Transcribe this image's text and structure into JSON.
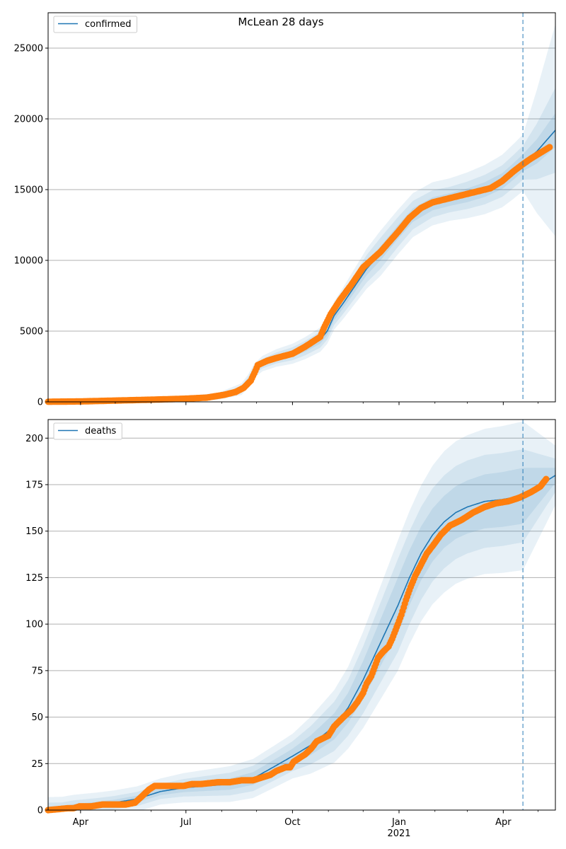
{
  "title": "McLean 28 days",
  "colors": {
    "model_line": "#1f77b4",
    "observed": "#ff7f0e",
    "band": "#1f77b4",
    "grid": "#b0b0b0",
    "forecast_marker": "#1f77b4"
  },
  "x_axis": {
    "ticks": [
      {
        "label": "Apr",
        "day": 31
      },
      {
        "label": "Jul",
        "day": 122
      },
      {
        "label": "Oct",
        "day": 214
      },
      {
        "label": "Jan",
        "day": 306
      },
      {
        "label": "Apr",
        "day": 396
      }
    ],
    "year_label": {
      "label": "2021",
      "day": 306
    },
    "minor_ticks_days": [
      61,
      92,
      153,
      183,
      245,
      275,
      337,
      365,
      426
    ],
    "xlim_days": [
      3,
      441
    ]
  },
  "chart_data": [
    {
      "type": "line",
      "legend": "confirmed",
      "legend_position": "top-left",
      "grid": "horizontal",
      "ylim": [
        0,
        27500
      ],
      "yticks": [
        0,
        5000,
        10000,
        15000,
        20000,
        25000
      ],
      "forecast_start_day": 413,
      "model": [
        [
          3,
          30
        ],
        [
          60,
          60
        ],
        [
          120,
          150
        ],
        [
          150,
          400
        ],
        [
          170,
          900
        ],
        [
          176,
          1500
        ],
        [
          181,
          2200
        ],
        [
          188,
          2700
        ],
        [
          200,
          3100
        ],
        [
          214,
          3400
        ],
        [
          225,
          3800
        ],
        [
          238,
          4400
        ],
        [
          244,
          5000
        ],
        [
          250,
          6100
        ],
        [
          258,
          7000
        ],
        [
          268,
          8200
        ],
        [
          278,
          9400
        ],
        [
          290,
          10500
        ],
        [
          305,
          12000
        ],
        [
          318,
          13200
        ],
        [
          335,
          14000
        ],
        [
          350,
          14300
        ],
        [
          365,
          14600
        ],
        [
          380,
          15000
        ],
        [
          395,
          15600
        ],
        [
          405,
          16300
        ],
        [
          413,
          16900
        ],
        [
          425,
          17700
        ],
        [
          441,
          19200
        ]
      ],
      "band_widths": {
        "inner": [
          [
            3,
            40
          ],
          [
            150,
            60
          ],
          [
            181,
            150
          ],
          [
            244,
            300
          ],
          [
            290,
            500
          ],
          [
            350,
            450
          ],
          [
            413,
            600
          ],
          [
            441,
            1200
          ]
        ],
        "middle": [
          [
            3,
            80
          ],
          [
            150,
            120
          ],
          [
            181,
            300
          ],
          [
            244,
            600
          ],
          [
            290,
            1100
          ],
          [
            350,
            900
          ],
          [
            413,
            1200
          ],
          [
            441,
            3000
          ]
        ],
        "outer": [
          [
            3,
            150
          ],
          [
            150,
            250
          ],
          [
            181,
            500
          ],
          [
            244,
            900
          ],
          [
            290,
            1600
          ],
          [
            350,
            1500
          ],
          [
            413,
            2000
          ],
          [
            441,
            7500
          ]
        ]
      },
      "observed": [
        [
          3,
          10
        ],
        [
          30,
          30
        ],
        [
          60,
          90
        ],
        [
          90,
          150
        ],
        [
          120,
          220
        ],
        [
          140,
          300
        ],
        [
          155,
          500
        ],
        [
          165,
          700
        ],
        [
          172,
          1000
        ],
        [
          178,
          1500
        ],
        [
          182,
          2200
        ],
        [
          184,
          2600
        ],
        [
          192,
          2900
        ],
        [
          200,
          3100
        ],
        [
          214,
          3400
        ],
        [
          225,
          3900
        ],
        [
          238,
          4600
        ],
        [
          241,
          5200
        ],
        [
          247,
          6200
        ],
        [
          255,
          7200
        ],
        [
          265,
          8300
        ],
        [
          275,
          9500
        ],
        [
          290,
          10600
        ],
        [
          305,
          12000
        ],
        [
          315,
          13000
        ],
        [
          325,
          13700
        ],
        [
          335,
          14100
        ],
        [
          345,
          14300
        ],
        [
          355,
          14500
        ],
        [
          365,
          14700
        ],
        [
          375,
          14900
        ],
        [
          385,
          15100
        ],
        [
          395,
          15600
        ],
        [
          405,
          16300
        ],
        [
          413,
          16800
        ],
        [
          420,
          17200
        ],
        [
          430,
          17700
        ],
        [
          436,
          18000
        ]
      ]
    },
    {
      "type": "line",
      "legend": "deaths",
      "legend_position": "top-left",
      "grid": "horizontal",
      "ylim": [
        0,
        210
      ],
      "yticks": [
        0,
        25,
        50,
        75,
        100,
        125,
        150,
        175,
        200
      ],
      "forecast_start_day": 413,
      "model": [
        [
          3,
          1
        ],
        [
          15,
          1
        ],
        [
          25,
          2
        ],
        [
          45,
          3
        ],
        [
          60,
          4
        ],
        [
          80,
          6
        ],
        [
          90,
          8
        ],
        [
          100,
          10
        ],
        [
          120,
          12
        ],
        [
          140,
          13
        ],
        [
          160,
          14
        ],
        [
          180,
          17
        ],
        [
          200,
          24
        ],
        [
          214,
          29
        ],
        [
          230,
          35
        ],
        [
          240,
          40
        ],
        [
          250,
          45
        ],
        [
          262,
          55
        ],
        [
          275,
          70
        ],
        [
          290,
          90
        ],
        [
          305,
          110
        ],
        [
          315,
          125
        ],
        [
          325,
          138
        ],
        [
          335,
          148
        ],
        [
          345,
          155
        ],
        [
          355,
          160
        ],
        [
          365,
          163
        ],
        [
          380,
          166
        ],
        [
          395,
          167
        ],
        [
          413,
          169
        ],
        [
          441,
          180
        ]
      ],
      "band_widths": {
        "inner": [
          [
            3,
            1
          ],
          [
            100,
            2
          ],
          [
            214,
            4
          ],
          [
            262,
            8
          ],
          [
            305,
            15
          ],
          [
            345,
            14
          ],
          [
            413,
            15
          ],
          [
            441,
            4
          ]
        ],
        "middle": [
          [
            3,
            3
          ],
          [
            100,
            4
          ],
          [
            214,
            8
          ],
          [
            262,
            15
          ],
          [
            305,
            25
          ],
          [
            345,
            25
          ],
          [
            413,
            25
          ],
          [
            441,
            9
          ]
        ],
        "outer": [
          [
            3,
            6
          ],
          [
            100,
            7
          ],
          [
            214,
            12
          ],
          [
            262,
            22
          ],
          [
            305,
            35
          ],
          [
            345,
            38
          ],
          [
            413,
            40
          ],
          [
            441,
            16
          ]
        ]
      },
      "observed": [
        [
          3,
          0
        ],
        [
          20,
          1
        ],
        [
          25,
          1
        ],
        [
          30,
          2
        ],
        [
          40,
          2
        ],
        [
          50,
          3
        ],
        [
          60,
          3
        ],
        [
          70,
          3
        ],
        [
          78,
          4
        ],
        [
          85,
          8
        ],
        [
          90,
          11
        ],
        [
          95,
          13
        ],
        [
          110,
          13
        ],
        [
          120,
          13
        ],
        [
          127,
          14
        ],
        [
          135,
          14
        ],
        [
          150,
          15
        ],
        [
          160,
          15
        ],
        [
          170,
          16
        ],
        [
          180,
          16
        ],
        [
          185,
          17
        ],
        [
          195,
          19
        ],
        [
          200,
          21
        ],
        [
          208,
          23
        ],
        [
          212,
          23
        ],
        [
          215,
          26
        ],
        [
          220,
          28
        ],
        [
          225,
          30
        ],
        [
          230,
          33
        ],
        [
          235,
          37
        ],
        [
          245,
          40
        ],
        [
          250,
          45
        ],
        [
          258,
          50
        ],
        [
          265,
          54
        ],
        [
          270,
          58
        ],
        [
          275,
          63
        ],
        [
          278,
          68
        ],
        [
          282,
          72
        ],
        [
          288,
          82
        ],
        [
          292,
          85
        ],
        [
          297,
          88
        ],
        [
          300,
          92
        ],
        [
          305,
          100
        ],
        [
          308,
          105
        ],
        [
          312,
          113
        ],
        [
          316,
          120
        ],
        [
          320,
          126
        ],
        [
          325,
          132
        ],
        [
          330,
          138
        ],
        [
          335,
          142
        ],
        [
          342,
          148
        ],
        [
          350,
          153
        ],
        [
          360,
          156
        ],
        [
          370,
          160
        ],
        [
          380,
          163
        ],
        [
          390,
          165
        ],
        [
          400,
          166
        ],
        [
          410,
          168
        ],
        [
          420,
          171
        ],
        [
          428,
          174
        ],
        [
          433,
          178
        ]
      ]
    }
  ]
}
